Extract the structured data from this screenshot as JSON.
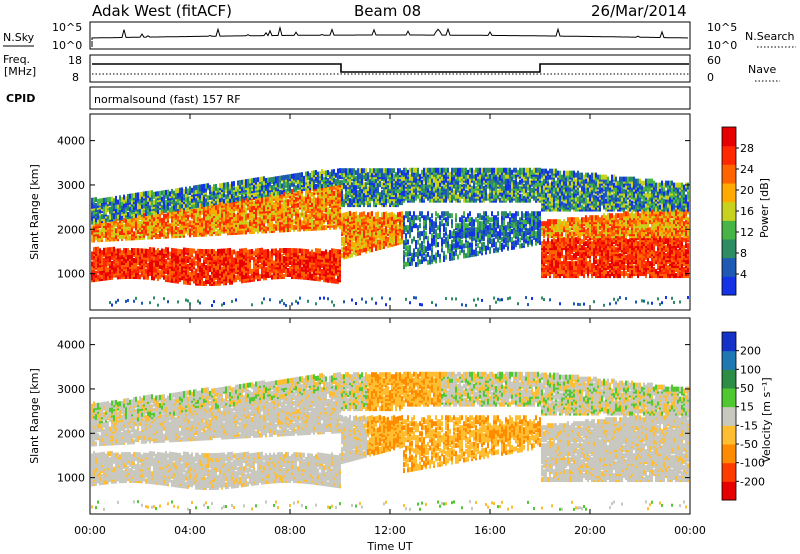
{
  "header": {
    "station": "Adak West (fitACF)",
    "beam": "Beam 08",
    "date": "26/Mar/2014"
  },
  "panels": {
    "nsky": {
      "left_label": "N.Sky",
      "left_ticks": [
        "10^5",
        "10^0"
      ],
      "right_label": "N.Search",
      "right_ticks": [
        "10^5",
        "10^0"
      ]
    },
    "freq": {
      "left_label_1": "Freq.",
      "left_label_2": "[MHz]",
      "left_ticks": [
        "18",
        "8"
      ],
      "right_label": "Nave",
      "right_ticks": [
        "60",
        "0"
      ]
    },
    "cpid": {
      "label": "CPID",
      "text": "normalsound (fast) 157 RF"
    }
  },
  "colors": {
    "power": [
      "#1432e6",
      "#1e5ab4",
      "#2d8c64",
      "#46b446",
      "#c8d21e",
      "#ffaa00",
      "#ff6400",
      "#ff2800",
      "#e60000"
    ],
    "velocity": [
      "#e60000",
      "#ff3c00",
      "#ff8c00",
      "#ffbe32",
      "#c8c8c0",
      "#50c832",
      "#2d8c46",
      "#1e78b4",
      "#1432c8"
    ]
  },
  "chart_data": [
    {
      "type": "heatmap",
      "title": "",
      "xlabel": "Time UT",
      "ylabel": "Slant Range [km]",
      "colorbar_label": "Power [dB]",
      "colorbar_ticks": [
        "28",
        "24",
        "20",
        "16",
        "12",
        "8",
        "4"
      ],
      "x_ticks": [
        "00:00",
        "04:00",
        "08:00",
        "12:00",
        "16:00",
        "20:00",
        "00:00"
      ],
      "y_ticks": [
        "1000",
        "2000",
        "3000",
        "4000"
      ],
      "xlim": [
        0,
        24
      ],
      "ylim": [
        180,
        4600
      ]
    },
    {
      "type": "heatmap",
      "title": "",
      "xlabel": "Time UT",
      "ylabel": "Slant Range [km]",
      "colorbar_label": "Velocity [m s⁻¹]",
      "colorbar_ticks": [
        "200",
        "100",
        "50",
        "15",
        "-15",
        "-50",
        "-100",
        "-200"
      ],
      "x_ticks": [
        "00:00",
        "04:00",
        "08:00",
        "12:00",
        "16:00",
        "20:00",
        "00:00"
      ],
      "y_ticks": [
        "1000",
        "2000",
        "3000",
        "4000"
      ],
      "xlim": [
        0,
        24
      ],
      "ylim": [
        180,
        4600
      ]
    }
  ]
}
